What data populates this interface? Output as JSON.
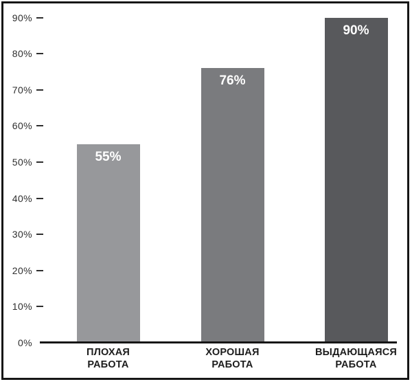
{
  "chart_data": {
    "type": "bar",
    "categories": [
      [
        "ПЛОХАЯ",
        "РАБОТА"
      ],
      [
        "ХОРОШАЯ",
        "РАБОТА"
      ],
      [
        "ВЫДАЮЩАЯСЯ",
        "РАБОТА"
      ]
    ],
    "values": [
      55,
      76,
      90
    ],
    "value_labels": [
      "55%",
      "76%",
      "90%"
    ],
    "bar_colors": [
      "#97989b",
      "#7a7b7e",
      "#58595c"
    ],
    "value_label_color": "#ffffff",
    "title": "",
    "xlabel": "",
    "ylabel": "",
    "y_axis": {
      "tick_values": [
        90,
        80,
        70,
        60,
        50,
        40,
        30,
        20,
        10,
        0
      ],
      "tick_labels": [
        "90%",
        "80%",
        "70%",
        "60%",
        "50%",
        "40%",
        "30%",
        "20%",
        "10%",
        "0%"
      ],
      "range": [
        0,
        90
      ],
      "step": 10
    },
    "grid": "off",
    "legend": "none",
    "colors": {
      "axis": "#161616",
      "frame": "#161616",
      "tick_text": "#2e2e2e",
      "tick_dash": "#2e2e2e",
      "category_text": "#1c1c1c",
      "background": "#ffffff"
    }
  }
}
